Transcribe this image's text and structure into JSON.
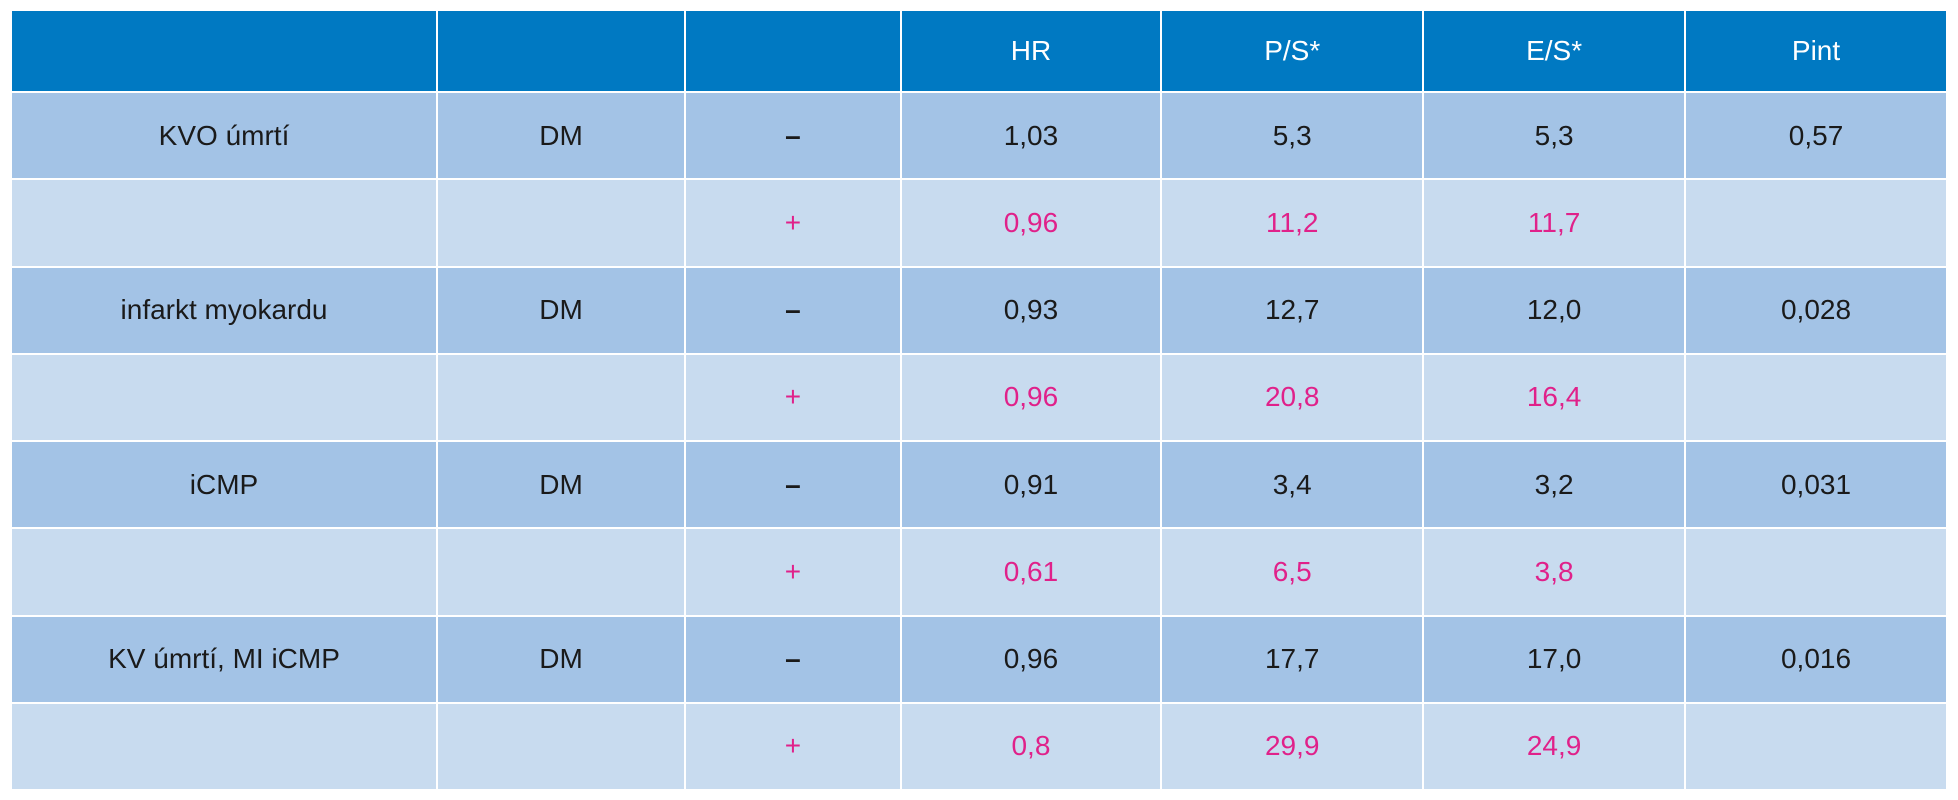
{
  "colors": {
    "header_bg": "#0079c2",
    "header_text": "#ffffff",
    "row_main_bg": "#a3c3e6",
    "row_sub_bg": "#c8dbef",
    "text_dark": "#1a1a1a",
    "highlight_text": "#e0218a"
  },
  "table": {
    "headers": [
      "",
      "",
      "",
      "HR",
      "P/S*",
      "E/S*",
      "Pint"
    ],
    "groups": [
      {
        "endpoint": "KVO úmrtí",
        "dm": "DM",
        "neg": {
          "sign": "–",
          "hr": "1,03",
          "ps": "5,3",
          "es": "5,3",
          "pint": "0,57"
        },
        "pos": {
          "sign": "+",
          "hr": "0,96",
          "ps": "11,2",
          "es": "11,7",
          "pint": ""
        }
      },
      {
        "endpoint": "infarkt myokardu",
        "dm": "DM",
        "neg": {
          "sign": "–",
          "hr": "0,93",
          "ps": "12,7",
          "es": "12,0",
          "pint": "0,028"
        },
        "pos": {
          "sign": "+",
          "hr": "0,96",
          "ps": "20,8",
          "es": "16,4",
          "pint": ""
        }
      },
      {
        "endpoint": "iCMP",
        "dm": "DM",
        "neg": {
          "sign": "–",
          "hr": "0,91",
          "ps": "3,4",
          "es": "3,2",
          "pint": "0,031"
        },
        "pos": {
          "sign": "+",
          "hr": "0,61",
          "ps": "6,5",
          "es": "3,8",
          "pint": ""
        }
      },
      {
        "endpoint": "KV úmrtí, MI iCMP",
        "dm": "DM",
        "neg": {
          "sign": "–",
          "hr": "0,96",
          "ps": "17,7",
          "es": "17,0",
          "pint": "0,016"
        },
        "pos": {
          "sign": "+",
          "hr": "0,8",
          "ps": "29,9",
          "es": "24,9",
          "pint": ""
        }
      }
    ]
  }
}
